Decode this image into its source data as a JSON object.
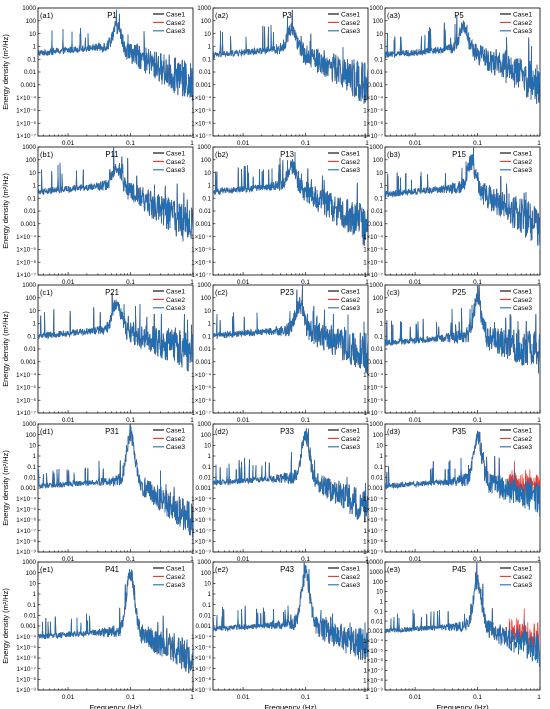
{
  "figure": {
    "colors": {
      "Case1": "#000000",
      "Case2": "#e8342c",
      "Case3": "#1f6fb4"
    },
    "ylabel": "Energy density (m²/Hz)",
    "xlabel": "Frequency (Hz)"
  },
  "chart_data": [
    {
      "type": "line",
      "panel": "(a1)",
      "title": "P1",
      "row": 0,
      "col": 0,
      "xscale": "log",
      "yscale": "log",
      "xlim": [
        0.0033,
        1
      ],
      "ylim": [
        1e-07,
        1000
      ],
      "xticks": [
        "0.01",
        "0.1"
      ],
      "legend": [
        "Case1",
        "Case2",
        "Case3"
      ],
      "legend_position": "top-right",
      "peak_frequency": 0.06,
      "peak_value": 35,
      "low_freq_level": 0.3,
      "high_freq_level": 0.001,
      "note": "Case1/Case2 overlap Case3"
    },
    {
      "type": "line",
      "panel": "(a2)",
      "title": "P3",
      "row": 0,
      "col": 1,
      "xscale": "log",
      "yscale": "log",
      "xlim": [
        0.0033,
        1
      ],
      "ylim": [
        1e-07,
        1000
      ],
      "xticks": [
        "0.01",
        "0.1"
      ],
      "legend": [
        "Case1",
        "Case2",
        "Case3"
      ],
      "legend_position": "top-right",
      "peak_frequency": 0.06,
      "peak_value": 30,
      "low_freq_level": 0.2,
      "high_freq_level": 0.001
    },
    {
      "type": "line",
      "panel": "(a3)",
      "title": "P5",
      "row": 0,
      "col": 2,
      "xscale": "log",
      "yscale": "log",
      "xlim": [
        0.0033,
        1
      ],
      "ylim": [
        1e-07,
        1000
      ],
      "xticks": [
        "0.01",
        "0.1"
      ],
      "legend": [
        "Case1",
        "Case2",
        "Case3"
      ],
      "legend_position": "top-right",
      "peak_frequency": 0.06,
      "peak_value": 40,
      "low_freq_level": 0.2,
      "high_freq_level": 0.001
    },
    {
      "type": "line",
      "panel": "(b1)",
      "title": "P11",
      "row": 1,
      "col": 0,
      "xscale": "log",
      "yscale": "log",
      "xlim": [
        0.0033,
        1
      ],
      "ylim": [
        1e-07,
        1000
      ],
      "xticks": [
        "0.01",
        "0.1"
      ],
      "legend": [
        "Case1",
        "Case2",
        "Case3"
      ],
      "legend_position": "top-right",
      "peak_frequency": 0.06,
      "peak_value": 30,
      "low_freq_level": 0.3,
      "high_freq_level": 0.0005
    },
    {
      "type": "line",
      "panel": "(b2)",
      "title": "P13",
      "row": 1,
      "col": 1,
      "xscale": "log",
      "yscale": "log",
      "xlim": [
        0.0033,
        1
      ],
      "ylim": [
        1e-07,
        1000
      ],
      "xticks": [
        "0.01",
        "0.1"
      ],
      "legend": [
        "Case1",
        "Case2",
        "Case3"
      ],
      "legend_position": "top-right",
      "peak_frequency": 0.06,
      "peak_value": 30,
      "low_freq_level": 0.3,
      "high_freq_level": 0.0005
    },
    {
      "type": "line",
      "panel": "(b3)",
      "title": "P15",
      "row": 1,
      "col": 2,
      "xscale": "log",
      "yscale": "log",
      "xlim": [
        0.0033,
        1
      ],
      "ylim": [
        1e-07,
        1000
      ],
      "xticks": [
        "0.01",
        "0.1"
      ],
      "legend": [
        "Case1",
        "Case2",
        "Case3"
      ],
      "legend_position": "top-right",
      "peak_frequency": 0.08,
      "peak_value": 60,
      "low_freq_level": 0.2,
      "high_freq_level": 0.0005
    },
    {
      "type": "line",
      "panel": "(c1)",
      "title": "P21",
      "row": 2,
      "col": 0,
      "xscale": "log",
      "yscale": "log",
      "xlim": [
        0.0033,
        1
      ],
      "ylim": [
        1e-07,
        1000
      ],
      "xticks": [
        "0.01",
        "0.1"
      ],
      "legend": [
        "Case1",
        "Case2",
        "Case3"
      ],
      "legend_position": "top-right",
      "peak_frequency": 0.06,
      "peak_value": 40,
      "low_freq_level": 0.1,
      "high_freq_level": 0.005
    },
    {
      "type": "line",
      "panel": "(c2)",
      "title": "P23",
      "row": 2,
      "col": 1,
      "xscale": "log",
      "yscale": "log",
      "xlim": [
        0.0033,
        1
      ],
      "ylim": [
        1e-07,
        1000
      ],
      "xticks": [
        "0.01",
        "0.1"
      ],
      "legend": [
        "Case1",
        "Case2",
        "Case3"
      ],
      "legend_position": "top-right",
      "peak_frequency": 0.08,
      "peak_value": 30,
      "low_freq_level": 0.1,
      "high_freq_level": 0.005
    },
    {
      "type": "line",
      "panel": "(c3)",
      "title": "P25",
      "row": 2,
      "col": 2,
      "xscale": "log",
      "yscale": "log",
      "xlim": [
        0.0033,
        1
      ],
      "ylim": [
        1e-07,
        1000
      ],
      "xticks": [
        "0.01",
        "0.1"
      ],
      "legend": [
        "Case1",
        "Case2",
        "Case3"
      ],
      "legend_position": "top-right",
      "peak_frequency": 0.1,
      "peak_value": 60,
      "low_freq_level": 0.03,
      "high_freq_level": 0.005
    },
    {
      "type": "line",
      "panel": "(d1)",
      "title": "P31",
      "row": 3,
      "col": 0,
      "xscale": "log",
      "yscale": "log",
      "xlim": [
        0.0033,
        1
      ],
      "ylim": [
        1e-09,
        1000
      ],
      "xticks": [
        "0.01",
        "0.1"
      ],
      "legend": [
        "Case1",
        "Case2",
        "Case3"
      ],
      "legend_position": "top-right",
      "peak_frequency": 0.1,
      "peak_value": 100,
      "low_freq_level": 0.0015,
      "high_freq_level": 1e-06
    },
    {
      "type": "line",
      "panel": "(d2)",
      "title": "P33",
      "row": 3,
      "col": 1,
      "xscale": "log",
      "yscale": "log",
      "xlim": [
        0.0033,
        1
      ],
      "ylim": [
        1e-09,
        1000
      ],
      "xticks": [
        "0.01",
        "0.1"
      ],
      "legend": [
        "Case1",
        "Case2",
        "Case3"
      ],
      "legend_position": "top-right",
      "peak_frequency": 0.1,
      "peak_value": 100,
      "low_freq_level": 0.003,
      "high_freq_level": 1e-05
    },
    {
      "type": "line",
      "panel": "(d3)",
      "title": "P35",
      "row": 3,
      "col": 2,
      "xscale": "log",
      "yscale": "log",
      "xlim": [
        0.0033,
        1
      ],
      "ylim": [
        1e-09,
        1000
      ],
      "xticks": [
        "0.01",
        "0.1"
      ],
      "legend": [
        "Case1",
        "Case2",
        "Case3"
      ],
      "legend_position": "top-right",
      "peak_frequency": 0.1,
      "peak_value": 80,
      "low_freq_level": 0.0015,
      "high_freq_level": 0.0001,
      "note": "Case2 visible above Case3 near 1 Hz"
    },
    {
      "type": "line",
      "panel": "(e1)",
      "title": "P41",
      "row": 4,
      "col": 0,
      "xscale": "log",
      "yscale": "log",
      "xlim": [
        0.0033,
        1
      ],
      "ylim": [
        1e-09,
        1000
      ],
      "xticks": [
        "0.01",
        "0.1"
      ],
      "legend": [
        "Case1",
        "Case2",
        "Case3"
      ],
      "legend_position": "top-right",
      "peak_frequency": 0.1,
      "peak_value": 90,
      "low_freq_level": 0.0001,
      "high_freq_level": 1e-06
    },
    {
      "type": "line",
      "panel": "(e2)",
      "title": "P43",
      "row": 4,
      "col": 1,
      "xscale": "log",
      "yscale": "log",
      "xlim": [
        0.0033,
        1
      ],
      "ylim": [
        1e-09,
        1000
      ],
      "xticks": [
        "0.01",
        "0.1"
      ],
      "legend": [
        "Case1",
        "Case2",
        "Case3"
      ],
      "legend_position": "top-right",
      "peak_frequency": 0.1,
      "peak_value": 80,
      "low_freq_level": 0.0005,
      "high_freq_level": 1e-05
    },
    {
      "type": "line",
      "panel": "(e3)",
      "title": "P45",
      "row": 4,
      "col": 2,
      "xscale": "log",
      "yscale": "log",
      "xlim": [
        0.0033,
        1
      ],
      "ylim": [
        1e-09,
        10000
      ],
      "xticks": [
        "0.01",
        "0.1"
      ],
      "legend": [
        "Case1",
        "Case2",
        "Case3"
      ],
      "legend_position": "top-right",
      "peak_frequency": 0.1,
      "peak_value": 80,
      "low_freq_level": 0.001,
      "high_freq_level": 1e-05,
      "note": "Case2 visible near 1 Hz"
    }
  ]
}
